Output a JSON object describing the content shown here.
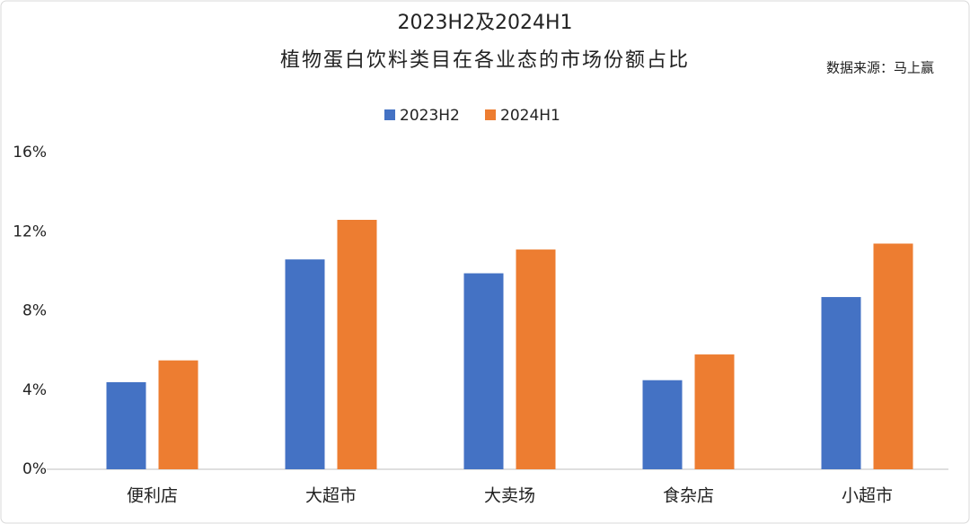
{
  "chart_data": {
    "type": "bar",
    "title": "2023H2及2024H1",
    "subtitle": "植物蛋白饮料类目在各业态的市场份额占比",
    "source": "数据来源：马上赢",
    "categories": [
      "便利店",
      "大超市",
      "大卖场",
      "食杂店",
      "小超市"
    ],
    "series": [
      {
        "name": "2023H2",
        "color": "#4472c4",
        "values": [
          4.4,
          10.6,
          9.9,
          4.5,
          8.7
        ]
      },
      {
        "name": "2024H1",
        "color": "#ed7d31",
        "values": [
          5.5,
          12.6,
          11.1,
          5.8,
          11.4
        ]
      }
    ],
    "ylim": [
      0,
      16
    ],
    "yticks": [
      {
        "value": 0,
        "label": "0%"
      },
      {
        "value": 4,
        "label": "4%"
      },
      {
        "value": 8,
        "label": "8%"
      },
      {
        "value": 12,
        "label": "12%"
      },
      {
        "value": 16,
        "label": "16%"
      }
    ],
    "grid": false,
    "legend": "top"
  }
}
